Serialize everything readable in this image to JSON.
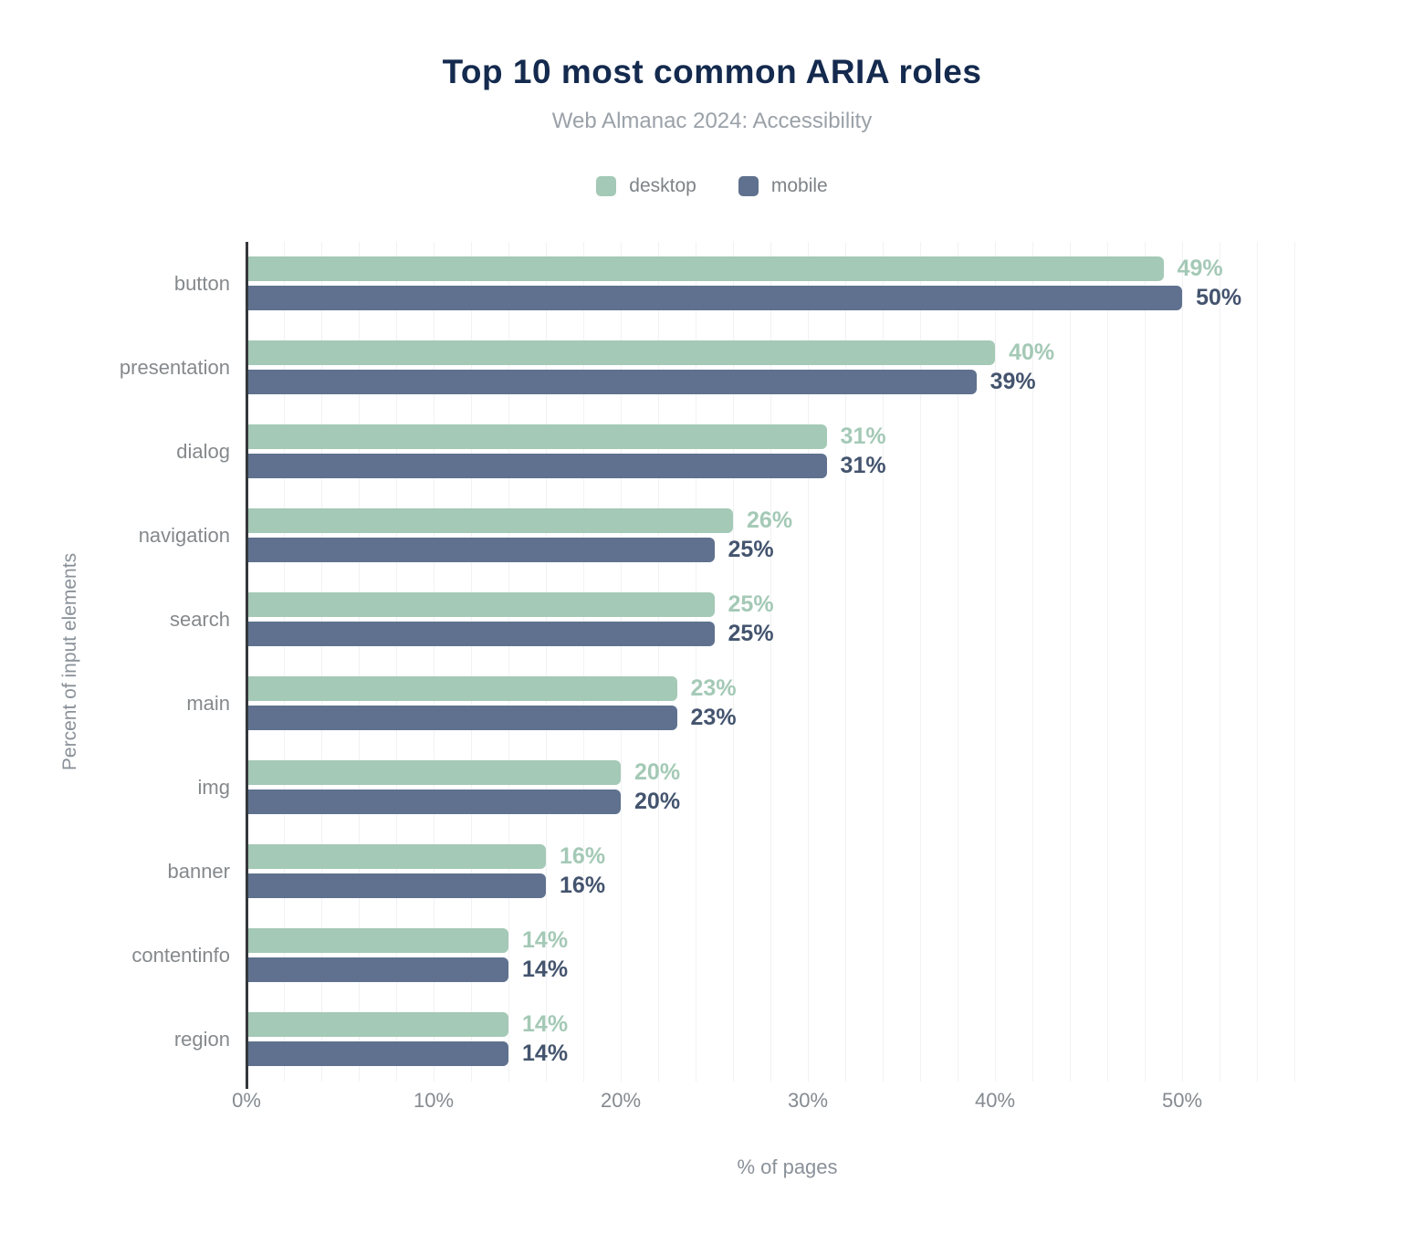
{
  "chart_data": {
    "type": "bar",
    "orientation": "horizontal",
    "title": "Top 10 most common ARIA roles",
    "subtitle": "Web Almanac 2024: Accessibility",
    "xlabel": "% of pages",
    "ylabel": "Percent of input elements",
    "categories": [
      "button",
      "presentation",
      "dialog",
      "navigation",
      "search",
      "main",
      "img",
      "banner",
      "contentinfo",
      "region"
    ],
    "series": [
      {
        "name": "desktop",
        "color": "#a4c9b6",
        "value_label_color": "#a4c9b6",
        "values": [
          49,
          40,
          31,
          26,
          25,
          23,
          20,
          16,
          14,
          14
        ]
      },
      {
        "name": "mobile",
        "color": "#5f718e",
        "value_label_color": "#44546e",
        "values": [
          50,
          39,
          31,
          25,
          25,
          23,
          20,
          16,
          14,
          14
        ]
      }
    ],
    "value_suffix": "%",
    "x_ticks": [
      "0%",
      "10%",
      "20%",
      "30%",
      "40%",
      "50%"
    ],
    "x_tick_step": 10,
    "xlim": [
      0,
      57.8
    ],
    "grid": "faint vertical minor gridlines every 2%",
    "legend_position": "top-center",
    "background_color": "#ffffff",
    "title_color": "#142a4e",
    "subtitle_color": "#9aa1a8",
    "axis_text_color": "#848a90"
  }
}
